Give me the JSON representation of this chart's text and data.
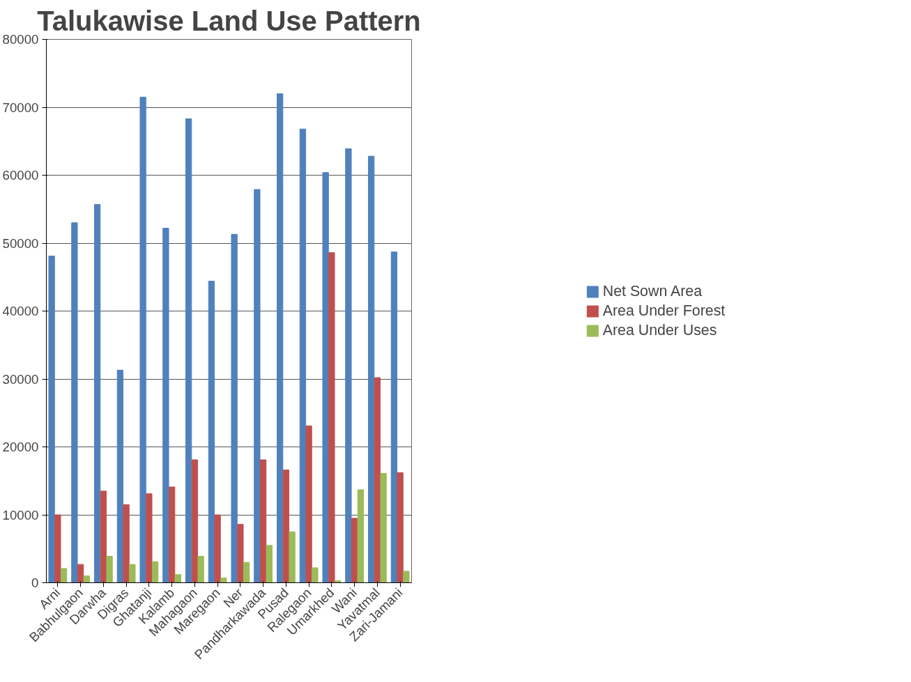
{
  "chart_data": {
    "type": "bar",
    "title": "Talukawise Land Use Pattern",
    "categories": [
      "Arni",
      "Babhulgaon",
      "Darwha",
      "Digras",
      "Ghatanji",
      "Kalamb",
      "Mahagaon",
      "Maregaon",
      "Ner",
      "Pandharkawada",
      "Pusad",
      "Ralegaon",
      "Umarkhed",
      "Wani",
      "Yavatmal",
      "Zari-Jamani"
    ],
    "series": [
      {
        "name": "Net Sown Area",
        "color": "#4f81bd",
        "values": [
          48100,
          53000,
          55700,
          31300,
          71500,
          52200,
          68300,
          44400,
          51300,
          57900,
          72000,
          66800,
          60400,
          63900,
          62800,
          48700
        ]
      },
      {
        "name": "Area Under Forest",
        "color": "#c0504d",
        "values": [
          10000,
          2700,
          13500,
          11500,
          13100,
          14100,
          18100,
          10000,
          8600,
          18100,
          16600,
          23100,
          48600,
          9500,
          30200,
          16200
        ]
      },
      {
        "name": "Area Under Uses",
        "color": "#9bbb59",
        "values": [
          2100,
          1000,
          3900,
          2700,
          3100,
          1200,
          3900,
          700,
          3000,
          5500,
          7500,
          2200,
          300,
          13700,
          16100,
          1700
        ]
      }
    ],
    "ylim": [
      0,
      80000
    ],
    "yticks": [
      0,
      10000,
      20000,
      30000,
      40000,
      50000,
      60000,
      70000,
      80000
    ],
    "grid": "y",
    "legend": "right"
  }
}
